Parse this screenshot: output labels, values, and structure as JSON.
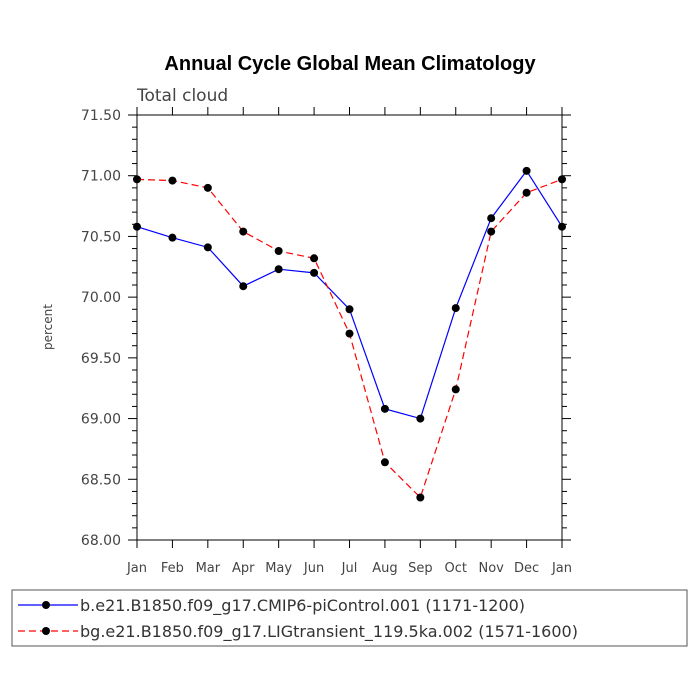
{
  "chart_data": {
    "type": "line",
    "title": "Annual Cycle Global Mean Climatology",
    "subtitle": "Total cloud",
    "xlabel": "",
    "ylabel": "percent",
    "categories": [
      "Jan",
      "Feb",
      "Mar",
      "Apr",
      "May",
      "Jun",
      "Jul",
      "Aug",
      "Sep",
      "Oct",
      "Nov",
      "Dec",
      "Jan"
    ],
    "ylim": [
      68.0,
      71.5
    ],
    "yticks": [
      "68.00",
      "68.50",
      "69.00",
      "69.50",
      "70.00",
      "70.50",
      "71.00",
      "71.50"
    ],
    "grid": false,
    "legend_position": "bottom",
    "series": [
      {
        "name": "b.e21.B1850.f09_g17.CMIP6-piControl.001 (1171-1200)",
        "color": "#0000ff",
        "dash": "solid",
        "values": [
          70.58,
          70.49,
          70.41,
          70.09,
          70.23,
          70.2,
          69.9,
          69.08,
          69.0,
          69.91,
          70.65,
          71.04,
          70.58
        ]
      },
      {
        "name": "bg.e21.B1850.f09_g17.LIGtransient_119.5ka.002 (1571-1600)",
        "color": "#ff0000",
        "dash": "dashed",
        "values": [
          70.97,
          70.96,
          70.9,
          70.54,
          70.38,
          70.32,
          69.7,
          68.64,
          68.35,
          69.24,
          70.54,
          70.86,
          70.97
        ]
      }
    ]
  }
}
